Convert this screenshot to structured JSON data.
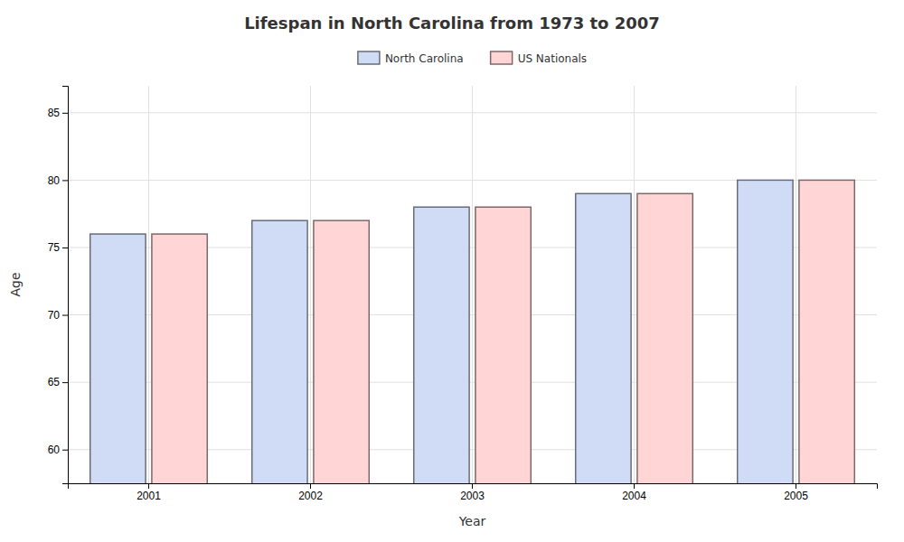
{
  "chart_data": {
    "type": "bar",
    "title": "Lifespan in North Carolina from 1973 to 2007",
    "xlabel": "Year",
    "ylabel": "Age",
    "categories": [
      "2001",
      "2002",
      "2003",
      "2004",
      "2005"
    ],
    "series": [
      {
        "name": "North Carolina",
        "color": "#d0dcf5",
        "values": [
          76,
          77,
          78,
          79,
          80
        ]
      },
      {
        "name": "US Nationals",
        "color": "#ffd5d5",
        "values": [
          76,
          77,
          78,
          79,
          80
        ]
      }
    ],
    "ylim": [
      57.5,
      87
    ],
    "yticks": [
      60,
      65,
      70,
      75,
      80,
      85
    ],
    "grid": true,
    "legend": "top"
  }
}
